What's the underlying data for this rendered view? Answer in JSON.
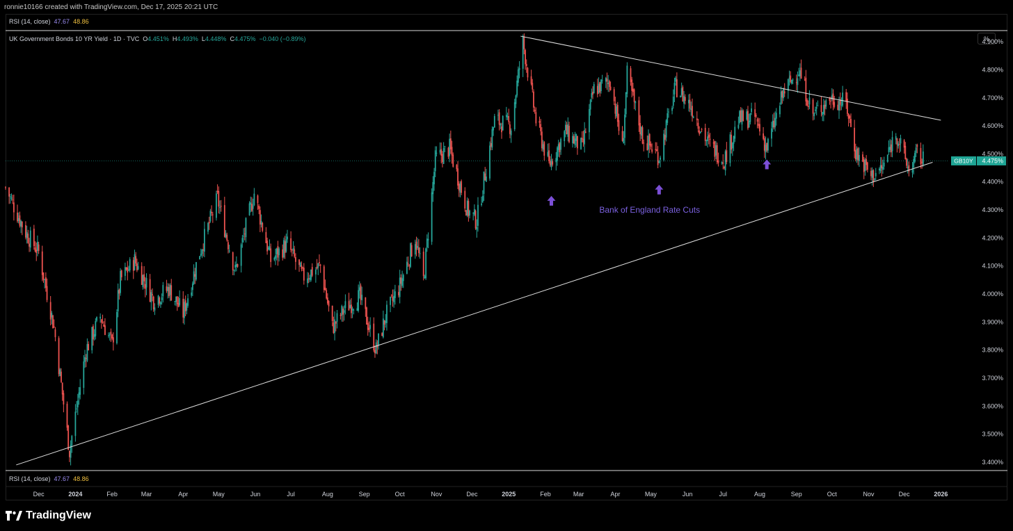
{
  "caption": "ronnie10166 created with TradingView.com, Dec 17, 2025 20:21 UTC",
  "rsi": {
    "label": "RSI (14, close)",
    "value1": "47.67",
    "value2": "48.86"
  },
  "legend": {
    "title": "UK Government Bonds 10 YR Yield · 1D · TVC",
    "o_label": "O",
    "o_value": "4.451%",
    "h_label": "H",
    "h_value": "4.493%",
    "l_label": "L",
    "l_value": "4.448%",
    "c_label": "C",
    "c_value": "4.475%",
    "change": "−0.040 (−0.89%)"
  },
  "unit_button": "%",
  "brand": "TradingView",
  "colors": {
    "up": "#26a69a",
    "down": "#ef5350",
    "arrow": "#7b4fd6",
    "annotation": "#7b61e0",
    "trendline": "#e0e0e0",
    "price_tag": "#1fa595"
  },
  "icons": {
    "logo": "tradingview-logo-icon",
    "arrows": "up-arrow-icon"
  },
  "chart_data": {
    "type": "candlestick",
    "title": "UK Government Bonds 10 YR Yield · 1D · TVC",
    "ylim": [
      3.37,
      4.94
    ],
    "y_ticks": [
      3.4,
      3.5,
      3.6,
      3.7,
      3.8,
      3.9,
      4.0,
      4.1,
      4.2,
      4.3,
      4.4,
      4.5,
      4.6,
      4.7,
      4.8,
      4.9
    ],
    "y_tick_labels": [
      "3.400%",
      "3.500%",
      "3.600%",
      "3.700%",
      "3.800%",
      "3.900%",
      "4.000%",
      "4.100%",
      "4.200%",
      "4.300%",
      "4.400%",
      "4.500%",
      "4.600%",
      "4.700%",
      "4.800%",
      "4.900%"
    ],
    "x_ticks": [
      {
        "label": "Dec",
        "date": "2023-12-01"
      },
      {
        "label": "2024",
        "date": "2024-01-01",
        "bold": true
      },
      {
        "label": "Feb",
        "date": "2024-02-01"
      },
      {
        "label": "Mar",
        "date": "2024-03-01"
      },
      {
        "label": "Apr",
        "date": "2024-04-01"
      },
      {
        "label": "May",
        "date": "2024-05-01"
      },
      {
        "label": "Jun",
        "date": "2024-06-01"
      },
      {
        "label": "Jul",
        "date": "2024-07-01"
      },
      {
        "label": "Aug",
        "date": "2024-08-01"
      },
      {
        "label": "Sep",
        "date": "2024-09-01"
      },
      {
        "label": "Oct",
        "date": "2024-10-01"
      },
      {
        "label": "Nov",
        "date": "2024-11-01"
      },
      {
        "label": "Dec",
        "date": "2024-12-01"
      },
      {
        "label": "2025",
        "date": "2025-01-01",
        "bold": true
      },
      {
        "label": "Feb",
        "date": "2025-02-01"
      },
      {
        "label": "Mar",
        "date": "2025-03-01"
      },
      {
        "label": "Apr",
        "date": "2025-04-01"
      },
      {
        "label": "May",
        "date": "2025-05-01"
      },
      {
        "label": "Jun",
        "date": "2025-06-01"
      },
      {
        "label": "Jul",
        "date": "2025-07-01"
      },
      {
        "label": "Aug",
        "date": "2025-08-01"
      },
      {
        "label": "Sep",
        "date": "2025-09-01"
      },
      {
        "label": "Oct",
        "date": "2025-10-01"
      },
      {
        "label": "Nov",
        "date": "2025-11-01"
      },
      {
        "label": "Dec",
        "date": "2025-12-01"
      },
      {
        "label": "2026",
        "date": "2026-01-01",
        "bold": true
      }
    ],
    "series_path": [
      [
        "2023-11-03",
        4.38
      ],
      [
        "2023-11-20",
        4.22
      ],
      [
        "2023-12-01",
        4.15
      ],
      [
        "2023-12-14",
        3.88
      ],
      [
        "2023-12-27",
        3.44
      ],
      [
        "2024-01-10",
        3.8
      ],
      [
        "2024-01-22",
        3.92
      ],
      [
        "2024-02-01",
        3.82
      ],
      [
        "2024-02-08",
        4.05
      ],
      [
        "2024-02-20",
        4.12
      ],
      [
        "2024-03-07",
        3.98
      ],
      [
        "2024-03-20",
        4.02
      ],
      [
        "2024-04-01",
        3.93
      ],
      [
        "2024-04-15",
        4.15
      ],
      [
        "2024-04-30",
        4.34
      ],
      [
        "2024-05-15",
        4.08
      ],
      [
        "2024-05-31",
        4.36
      ],
      [
        "2024-06-14",
        4.12
      ],
      [
        "2024-06-28",
        4.18
      ],
      [
        "2024-07-11",
        4.06
      ],
      [
        "2024-07-26",
        4.1
      ],
      [
        "2024-08-05",
        3.88
      ],
      [
        "2024-08-16",
        3.95
      ],
      [
        "2024-08-28",
        3.99
      ],
      [
        "2024-09-11",
        3.8
      ],
      [
        "2024-09-19",
        3.92
      ],
      [
        "2024-10-01",
        4.03
      ],
      [
        "2024-10-14",
        4.2
      ],
      [
        "2024-10-21",
        4.05
      ],
      [
        "2024-10-31",
        4.48
      ],
      [
        "2024-11-12",
        4.52
      ],
      [
        "2024-11-27",
        4.3
      ],
      [
        "2024-12-05",
        4.26
      ],
      [
        "2024-12-20",
        4.62
      ],
      [
        "2025-01-03",
        4.6
      ],
      [
        "2025-01-13",
        4.9
      ],
      [
        "2025-01-24",
        4.62
      ],
      [
        "2025-02-04",
        4.46
      ],
      [
        "2025-02-18",
        4.58
      ],
      [
        "2025-03-04",
        4.52
      ],
      [
        "2025-03-14",
        4.73
      ],
      [
        "2025-03-28",
        4.76
      ],
      [
        "2025-04-07",
        4.52
      ],
      [
        "2025-04-11",
        4.78
      ],
      [
        "2025-04-24",
        4.56
      ],
      [
        "2025-05-08",
        4.49
      ],
      [
        "2025-05-22",
        4.74
      ],
      [
        "2025-06-04",
        4.67
      ],
      [
        "2025-06-18",
        4.54
      ],
      [
        "2025-07-02",
        4.48
      ],
      [
        "2025-07-14",
        4.62
      ],
      [
        "2025-07-28",
        4.63
      ],
      [
        "2025-08-07",
        4.52
      ],
      [
        "2025-08-21",
        4.72
      ],
      [
        "2025-09-03",
        4.8
      ],
      [
        "2025-09-15",
        4.64
      ],
      [
        "2025-09-30",
        4.7
      ],
      [
        "2025-10-13",
        4.68
      ],
      [
        "2025-10-21",
        4.51
      ],
      [
        "2025-11-03",
        4.42
      ],
      [
        "2025-11-13",
        4.45
      ],
      [
        "2025-11-24",
        4.58
      ],
      [
        "2025-12-05",
        4.44
      ],
      [
        "2025-12-12",
        4.5
      ],
      [
        "2025-12-17",
        4.475
      ]
    ],
    "trendlines": [
      {
        "from": [
          "2023-11-12",
          3.39
        ],
        "to": [
          "2025-12-25",
          4.47
        ]
      },
      {
        "from": [
          "2025-01-11",
          4.92
        ],
        "to": [
          "2026-01-01",
          4.62
        ]
      }
    ],
    "current": {
      "symbol": "GB10Y",
      "value": 4.475,
      "label": "4.475%"
    },
    "annotation": {
      "text": "Bank of England Rate Cuts",
      "date": "2025-04-30",
      "y": 4.3
    },
    "event_arrows": [
      {
        "date": "2025-02-06",
        "y": 4.35
      },
      {
        "date": "2025-05-08",
        "y": 4.39
      },
      {
        "date": "2025-08-07",
        "y": 4.48
      }
    ]
  }
}
